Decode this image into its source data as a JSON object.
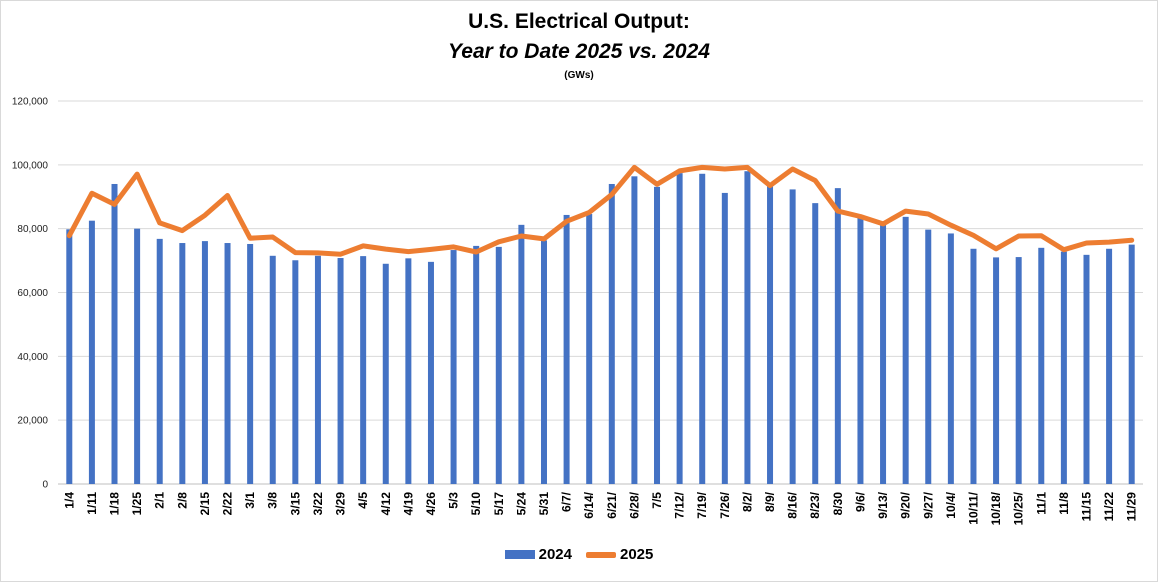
{
  "chart_data": {
    "type": "bar",
    "title": "U.S. Electrical Output:",
    "subtitle": "Year to Date 2025 vs. 2024",
    "unit_label": "(GWs)",
    "ylim": [
      0,
      120000
    ],
    "yticks": [
      "0",
      "20,000",
      "40,000",
      "60,000",
      "80,000",
      "100,000",
      "120,000"
    ],
    "ytick_values": [
      0,
      20000,
      40000,
      60000,
      80000,
      100000,
      120000
    ],
    "grid": true,
    "legend_position": "bottom",
    "categories": [
      "1/4",
      "1/11",
      "1/18",
      "1/25",
      "2/1",
      "2/8",
      "2/15",
      "2/22",
      "3/1",
      "3/8",
      "3/15",
      "3/22",
      "3/29",
      "4/5",
      "4/12",
      "4/19",
      "4/26",
      "5/3",
      "5/10",
      "5/17",
      "5/24",
      "5/31",
      "6/7/",
      "6/14/",
      "6/21/",
      "6/28/",
      "7/5",
      "7/12/",
      "7/19/",
      "7/26/",
      "8/2/",
      "8/9/",
      "8/16/",
      "8/23/",
      "8/30",
      "9/6/",
      "9/13/",
      "9/20/",
      "9/27/",
      "10/4/",
      "10/11/",
      "10/18/",
      "10/25/",
      "11/1",
      "11/8",
      "11/15",
      "11/22",
      "11/29"
    ],
    "series": [
      {
        "name": "2024",
        "type": "bar",
        "color": "#4472c4",
        "values": [
          79800,
          82500,
          94000,
          80000,
          76800,
          75500,
          76100,
          75500,
          75200,
          71500,
          70100,
          71500,
          70800,
          71400,
          69000,
          70700,
          69600,
          73300,
          74600,
          74300,
          81200,
          76300,
          84300,
          84600,
          94000,
          96400,
          93100,
          97400,
          97200,
          91200,
          98000,
          93600,
          92300,
          88000,
          92700,
          84300,
          81300,
          83700,
          79700,
          78500,
          73700,
          71000,
          71100,
          74000,
          72800,
          71800,
          73700,
          75000
        ]
      },
      {
        "name": "2025",
        "type": "line",
        "color": "#ed7d31",
        "values": [
          77800,
          91100,
          87600,
          97100,
          81800,
          79400,
          84200,
          90400,
          77000,
          77400,
          72500,
          72400,
          72000,
          74600,
          73600,
          72800,
          73500,
          74300,
          72700,
          75900,
          77700,
          76800,
          82300,
          85100,
          90700,
          99200,
          93900,
          98100,
          99200,
          98700,
          99200,
          93500,
          98700,
          95100,
          85500,
          83800,
          81500,
          85500,
          84600,
          81100,
          77900,
          73700,
          77700,
          77800,
          73400,
          75500,
          75800,
          76400
        ]
      }
    ]
  }
}
